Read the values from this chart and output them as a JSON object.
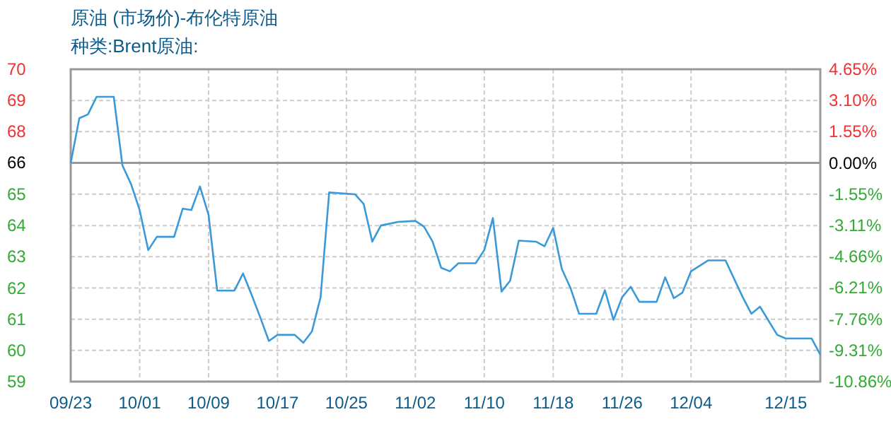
{
  "chart_data": {
    "type": "line",
    "title": "原油 (市场价)-布伦特原油",
    "subtitle": "种类:Brent原油:",
    "x": [
      "--09-23",
      "--09-24",
      "--09-25",
      "--09-26",
      "--09-28",
      "--09-29",
      "--09-30",
      "--10-01",
      "--10-02",
      "--10-03",
      "--10-05",
      "--10-06",
      "--10-07",
      "--10-08",
      "--10-09",
      "--10-10",
      "--10-12",
      "--10-13",
      "--10-14",
      "--10-15",
      "--10-16",
      "--10-17",
      "--10-19",
      "--10-20",
      "--10-21",
      "--10-22",
      "--10-23",
      "--10-26",
      "--10-27",
      "--10-28",
      "--10-29",
      "--10-31",
      "--11-02",
      "--11-03",
      "--11-04",
      "--11-05",
      "--11-06",
      "--11-07",
      "--11-09",
      "--11-10",
      "--11-11",
      "--11-12",
      "--11-13",
      "--11-14",
      "--11-16",
      "--11-17",
      "--11-18",
      "--11-19",
      "--11-20",
      "--11-21",
      "--11-23",
      "--11-24",
      "--11-25",
      "--11-26",
      "--11-27",
      "--11-28",
      "--11-30",
      "--12-01",
      "--12-02",
      "--12-03",
      "--12-04",
      "--12-06",
      "--12-08",
      "--12-10",
      "--12-11",
      "--12-12",
      "--12-14",
      "--12-15",
      "--12-18",
      "--12-19"
    ],
    "series": [
      {
        "color": "#3a9ad9",
        "axis": "y2",
        "values": [
          0,
          2.22,
          2.41,
          3.28,
          3.28,
          -0.12,
          -1.05,
          -2.34,
          -4.33,
          -3.67,
          -3.67,
          -2.27,
          -2.34,
          -1.17,
          -2.58,
          -6.34,
          -6.34,
          -5.49,
          -6.55,
          -7.67,
          -8.84,
          -8.54,
          -8.54,
          -8.93,
          -8.37,
          -6.67,
          -1.47,
          -1.56,
          -2.04,
          -3.91,
          -3.11,
          -2.93,
          -2.88,
          -3.16,
          -3.91,
          -5.21,
          -5.38,
          -4.98,
          -4.98,
          -4.33,
          -2.74,
          -6.39,
          -5.85,
          -3.86,
          -3.91,
          -4.14,
          -3.23,
          -5.26,
          -6.2,
          -7.49,
          -7.49,
          -6.32,
          -7.79,
          -6.67,
          -6.15,
          -6.9,
          -6.9,
          -5.68,
          -6.72,
          -6.44,
          -5.38,
          -4.84,
          -4.84,
          -6.67,
          -7.49,
          -7.14,
          -8.54,
          -8.72,
          -8.72,
          -9.52
        ]
      }
    ],
    "xlim": [
      "--09-23",
      "--12-19"
    ],
    "xticks": [
      {
        "value": "--09-23",
        "label": "09/23"
      },
      {
        "value": "--10-01",
        "label": "10/01"
      },
      {
        "value": "--10-09",
        "label": "10/09"
      },
      {
        "value": "--10-17",
        "label": "10/17"
      },
      {
        "value": "--10-25",
        "label": "10/25"
      },
      {
        "value": "--11-02",
        "label": "11/02"
      },
      {
        "value": "--11-10",
        "label": "11/10"
      },
      {
        "value": "--11-18",
        "label": "11/18"
      },
      {
        "value": "--11-26",
        "label": "11/26"
      },
      {
        "value": "--12-04",
        "label": "12/04"
      },
      {
        "value": "--12-15",
        "label": "12/15"
      }
    ],
    "ylim": [
      59.28,
      69.59
    ],
    "yticks": [
      {
        "value": 69.59,
        "label": "70"
      },
      {
        "value": 68.56,
        "label": "69"
      },
      {
        "value": 67.53,
        "label": "68"
      },
      {
        "value": 66.5,
        "label": "66"
      },
      {
        "value": 65.47,
        "label": "65"
      },
      {
        "value": 64.43,
        "label": "64"
      },
      {
        "value": 63.4,
        "label": "63"
      },
      {
        "value": 62.37,
        "label": "62"
      },
      {
        "value": 61.34,
        "label": "61"
      },
      {
        "value": 60.31,
        "label": "60"
      },
      {
        "value": 59.28,
        "label": "59"
      }
    ],
    "y2lim": [
      -10.86,
      4.65
    ],
    "y2ticks": [
      {
        "value": 4.65,
        "label": "4.65%"
      },
      {
        "value": 3.1,
        "label": "3.10%"
      },
      {
        "value": 1.55,
        "label": "1.55%"
      },
      {
        "value": 0,
        "label": "0.00%"
      },
      {
        "value": -1.55,
        "label": "-1.55%"
      },
      {
        "value": -3.11,
        "label": "-3.11%"
      },
      {
        "value": -4.66,
        "label": "-4.66%"
      },
      {
        "value": -6.21,
        "label": "-6.21%"
      },
      {
        "value": -7.76,
        "label": "-7.76%"
      },
      {
        "value": -9.31,
        "label": "-9.31%"
      },
      {
        "value": -10.86,
        "label": "-10.86%"
      }
    ],
    "ref_lines": [
      {
        "axis": "y2",
        "value": 0,
        "color": "#999999"
      }
    ],
    "grid": true,
    "marker": "none",
    "line_style": "solid"
  }
}
